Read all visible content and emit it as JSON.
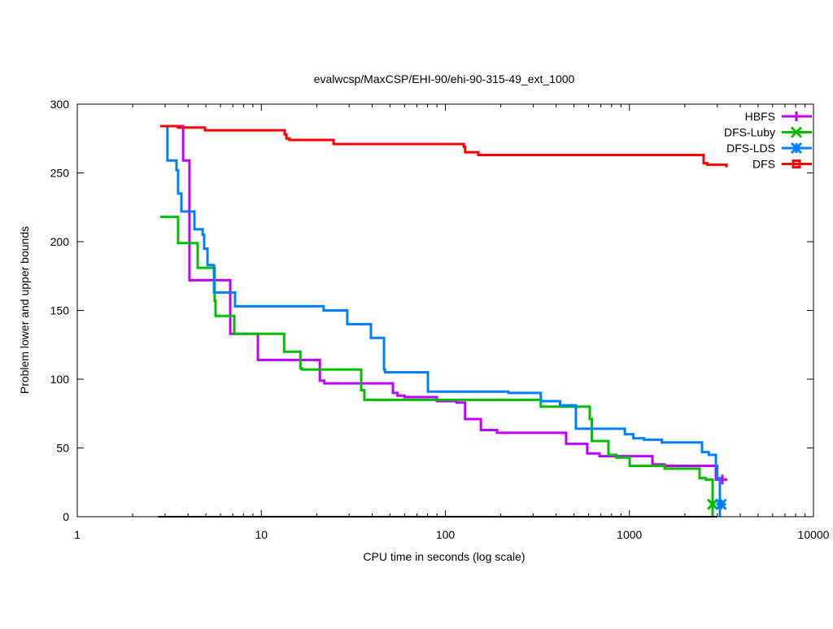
{
  "chart_data": {
    "type": "line",
    "title": "evalwcsp/MaxCSP/EHI-90/ehi-90-315-49_ext_1000",
    "xlabel": "CPU time in seconds (log scale)",
    "ylabel": "Problem lower and upper bounds",
    "xscale": "log",
    "xlim": [
      1,
      10000
    ],
    "ylim": [
      0,
      300
    ],
    "xticks": [
      1,
      10,
      100,
      1000,
      10000
    ],
    "xtick_labels": [
      "1",
      "10",
      "100",
      "1000",
      "10000"
    ],
    "yticks": [
      0,
      50,
      100,
      150,
      200,
      250,
      300
    ],
    "ytick_labels": [
      "0",
      "50",
      "100",
      "150",
      "200",
      "250",
      "300"
    ],
    "grid": false,
    "legend_position": "top-right",
    "step": true,
    "series": [
      {
        "name": "HBFS",
        "color": "#bf00ff",
        "marker": "plus",
        "points": [
          [
            3.5,
            284
          ],
          [
            3.76,
            259
          ],
          [
            4.07,
            172
          ],
          [
            6.78,
            133
          ],
          [
            9.58,
            114
          ],
          [
            20.8,
            99
          ],
          [
            22,
            97
          ],
          [
            51.9,
            90
          ],
          [
            55,
            88
          ],
          [
            60,
            87
          ],
          [
            89.9,
            84
          ],
          [
            115,
            83
          ],
          [
            128,
            71
          ],
          [
            156,
            63
          ],
          [
            191,
            61
          ],
          [
            280,
            61
          ],
          [
            453,
            53
          ],
          [
            512,
            53
          ],
          [
            590,
            46
          ],
          [
            688,
            44
          ],
          [
            1334,
            38
          ],
          [
            1553,
            37
          ],
          [
            2950,
            27
          ],
          [
            3200,
            27
          ]
        ],
        "end_marker": [
          3200,
          27
        ]
      },
      {
        "name": "DFS-Luby",
        "color": "#00bf00",
        "marker": "cross",
        "points": [
          [
            2.82,
            218
          ],
          [
            3.53,
            199
          ],
          [
            4.51,
            181
          ],
          [
            5.58,
            157
          ],
          [
            5.64,
            146
          ],
          [
            7.13,
            133
          ],
          [
            13.3,
            120
          ],
          [
            16.3,
            108
          ],
          [
            16.6,
            107
          ],
          [
            34.9,
            92
          ],
          [
            36.3,
            85
          ],
          [
            330,
            80
          ],
          [
            609,
            71
          ],
          [
            625,
            55
          ],
          [
            769,
            45
          ],
          [
            850,
            43
          ],
          [
            1003,
            37
          ],
          [
            1553,
            35
          ],
          [
            2405,
            28
          ],
          [
            2600,
            27
          ],
          [
            2832,
            9
          ],
          [
            2832,
            0
          ]
        ],
        "end_marker": [
          2832,
          9
        ]
      },
      {
        "name": "DFS-LDS",
        "color": "#0080ff",
        "marker": "star",
        "points": [
          [
            2.91,
            284
          ],
          [
            3.09,
            259
          ],
          [
            3.46,
            252
          ],
          [
            3.53,
            235
          ],
          [
            3.68,
            222
          ],
          [
            4.33,
            209
          ],
          [
            4.8,
            205
          ],
          [
            4.89,
            195
          ],
          [
            5.1,
            183
          ],
          [
            5.53,
            163
          ],
          [
            7.2,
            153
          ],
          [
            21.8,
            150
          ],
          [
            29.3,
            140
          ],
          [
            39.4,
            130
          ],
          [
            46.4,
            107
          ],
          [
            47,
            105
          ],
          [
            80.4,
            91
          ],
          [
            220,
            90
          ],
          [
            330,
            84
          ],
          [
            420,
            81
          ],
          [
            512,
            64
          ],
          [
            944,
            60
          ],
          [
            1050,
            57
          ],
          [
            1200,
            56
          ],
          [
            1500,
            54
          ],
          [
            2480,
            47
          ],
          [
            2700,
            45
          ],
          [
            2950,
            37
          ],
          [
            3000,
            28
          ],
          [
            3100,
            9
          ],
          [
            3100,
            0
          ]
        ],
        "end_marker": [
          3150,
          9
        ]
      },
      {
        "name": "DFS",
        "color": "#ff0000",
        "marker": "square",
        "points": [
          [
            2.82,
            284
          ],
          [
            3.53,
            283
          ],
          [
            4.94,
            281
          ],
          [
            13.3,
            281
          ],
          [
            13.4,
            278
          ],
          [
            13.7,
            275
          ],
          [
            14.2,
            274
          ],
          [
            24.7,
            271
          ],
          [
            126,
            269
          ],
          [
            128,
            265
          ],
          [
            151,
            263
          ],
          [
            2530,
            257
          ],
          [
            2650,
            256
          ],
          [
            3365,
            254
          ]
        ],
        "end_marker": null
      },
      {
        "name": "",
        "color": "#000000",
        "marker": "none",
        "points": [
          [
            2.75,
            0
          ],
          [
            3000,
            0
          ]
        ],
        "end_marker": null
      }
    ]
  }
}
